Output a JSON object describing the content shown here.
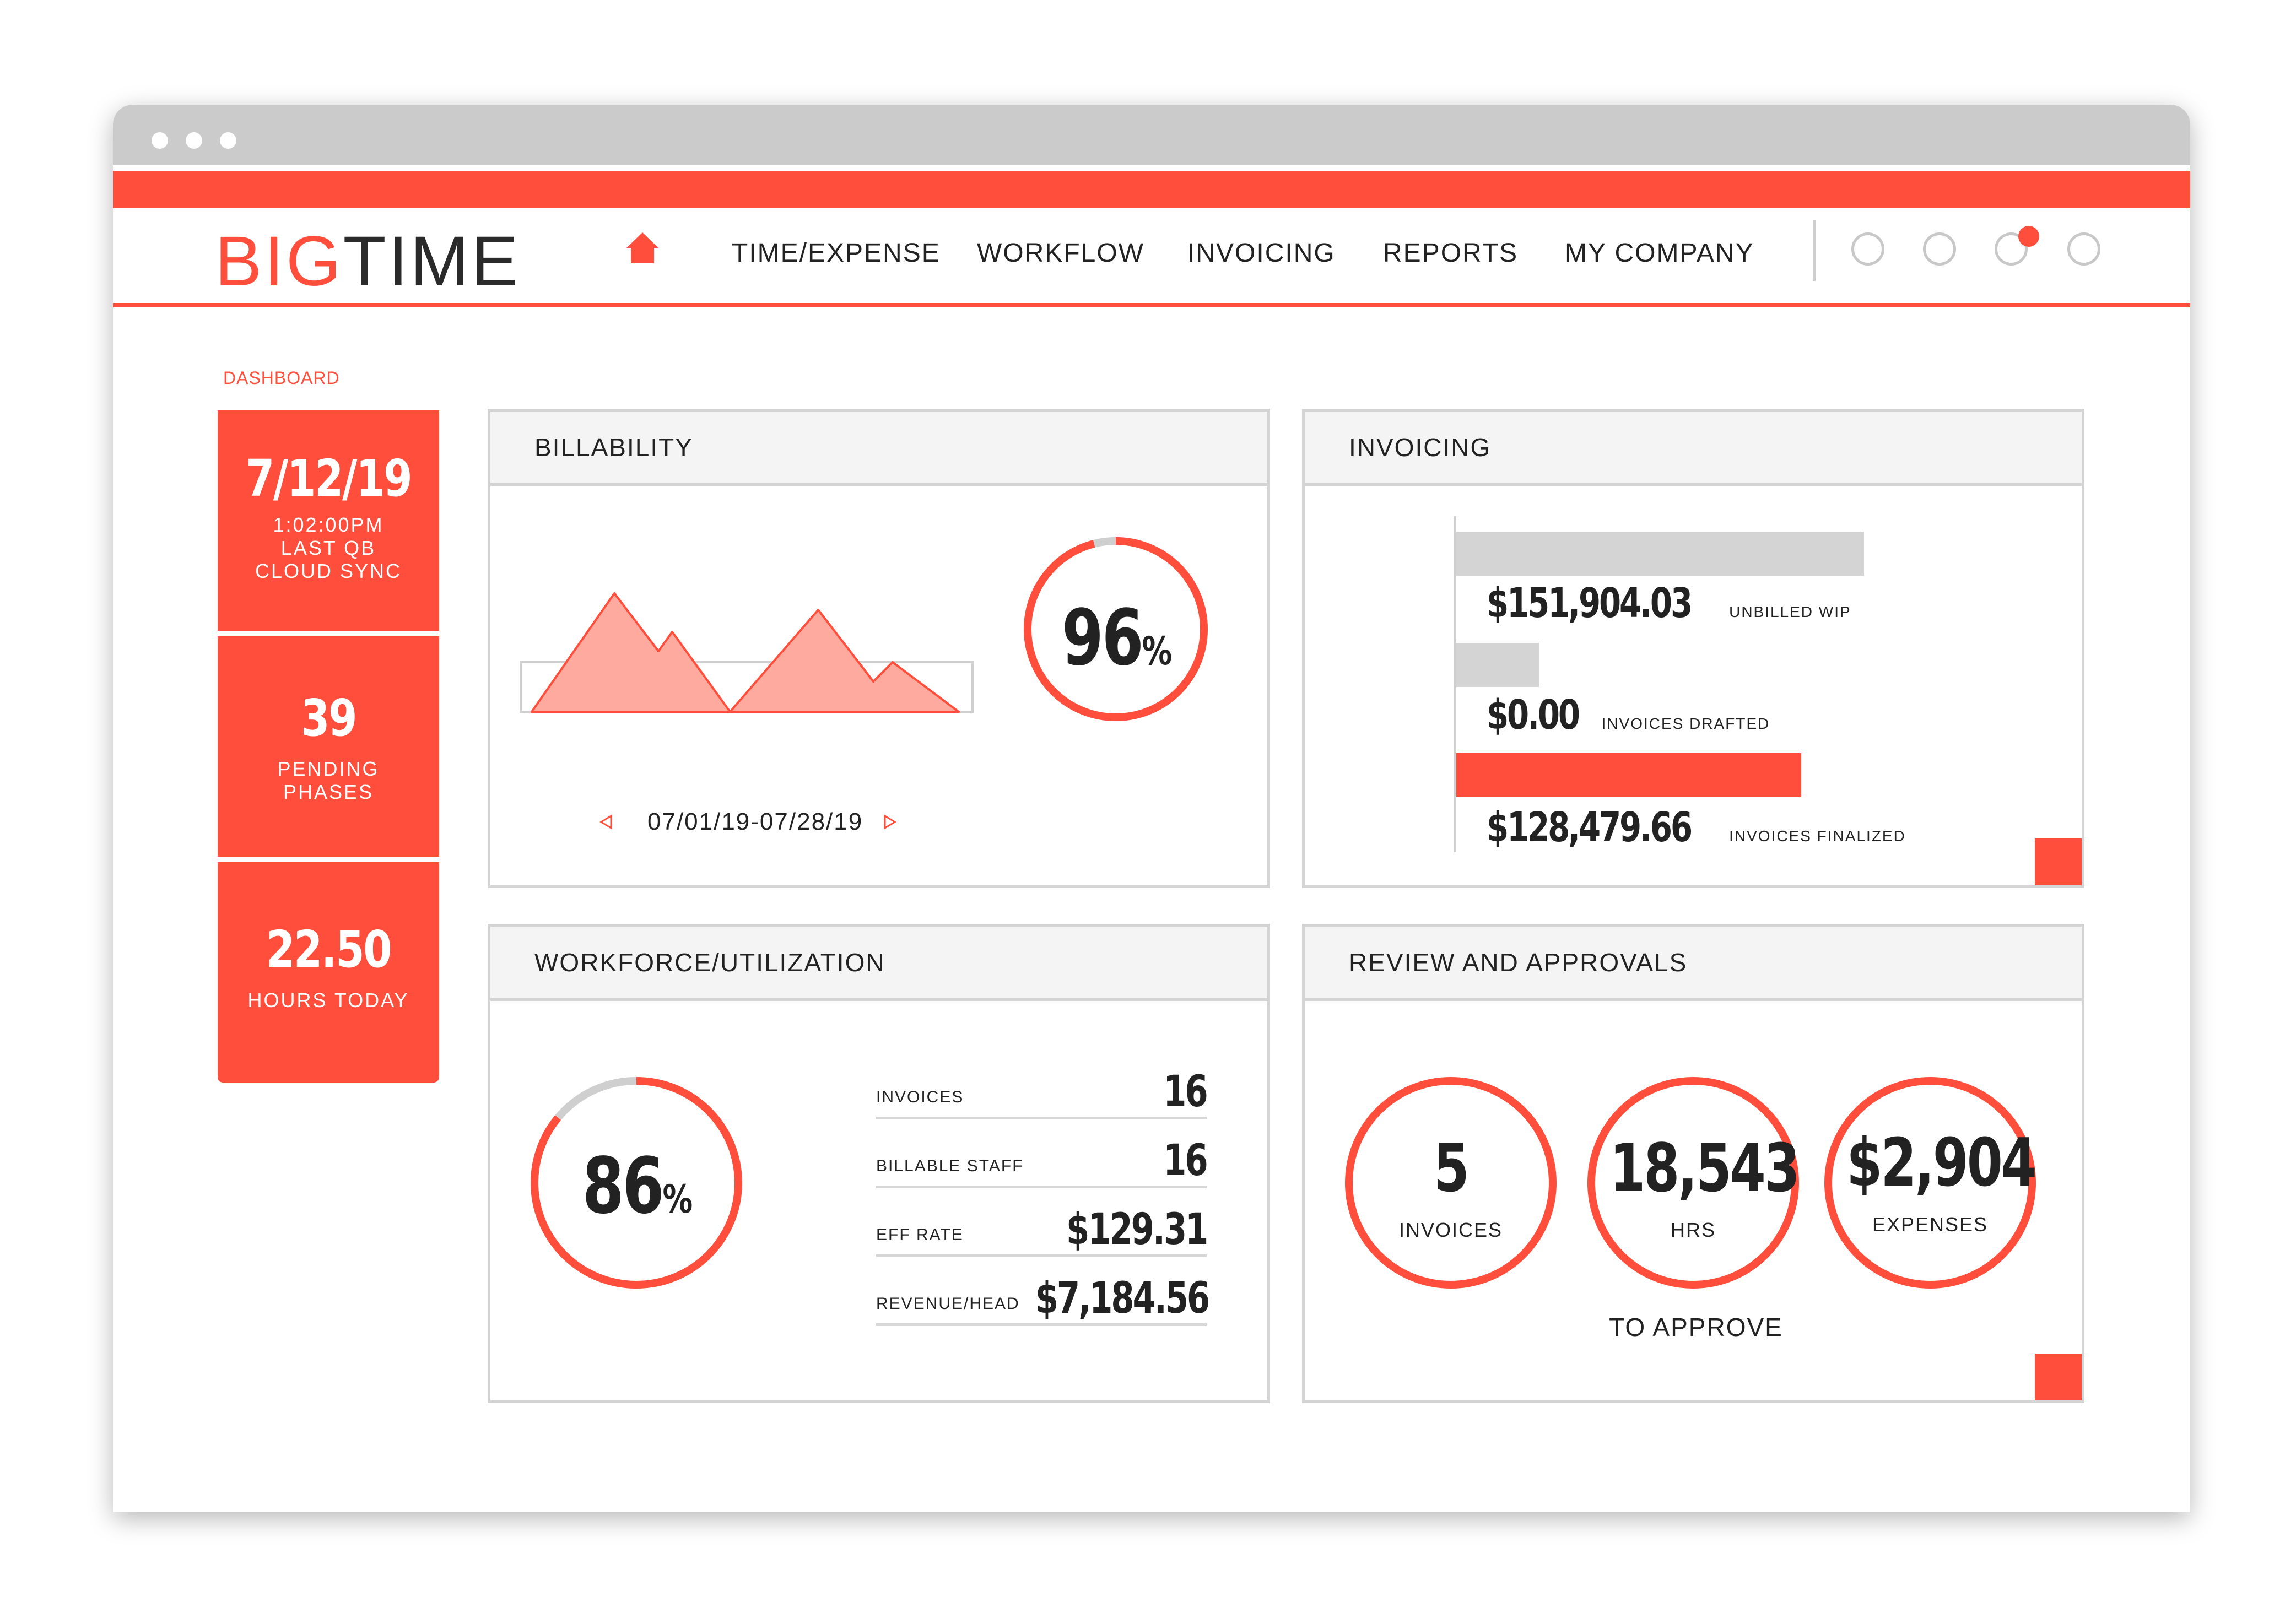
{
  "app": {
    "logo_big": "BIG",
    "logo_time": "TIME"
  },
  "nav": {
    "items": [
      "TIME/EXPENSE",
      "WORKFLOW",
      "INVOICING",
      "REPORTS",
      "MY COMPANY"
    ]
  },
  "breadcrumb": "DASHBOARD",
  "tiles": [
    {
      "value": "7/12/19",
      "lines": [
        "1:02:00PM",
        "LAST QB",
        "CLOUD SYNC"
      ]
    },
    {
      "value": "39",
      "lines": [
        "PENDING",
        "PHASES"
      ]
    },
    {
      "value": "22.50",
      "lines": [
        "HOURS TODAY"
      ]
    }
  ],
  "billability": {
    "title": "BILLABILITY",
    "percent": 96,
    "percent_number": "96",
    "percent_sign": "%",
    "date_range": "07/01/19-07/28/19"
  },
  "invoicing": {
    "title": "INVOICING",
    "bars": [
      {
        "amount": "$151,904.03",
        "label": "UNBILLED WIP",
        "value": 151904.03,
        "color": "#d4d4d4"
      },
      {
        "amount": "$0.00",
        "label": "INVOICES DRAFTED",
        "value": 0,
        "color": "#d4d4d4"
      },
      {
        "amount": "$128,479.66",
        "label": "INVOICES FINALIZED",
        "value": 128479.66,
        "color": "#ff4e3b"
      }
    ]
  },
  "workforce": {
    "title": "WORKFORCE/UTILIZATION",
    "percent": 86,
    "percent_number": "86",
    "percent_sign": "%",
    "metrics": [
      {
        "label": "INVOICES",
        "value": "16"
      },
      {
        "label": "BILLABLE STAFF",
        "value": "16"
      },
      {
        "label": "EFF RATE",
        "value": "$129.31"
      },
      {
        "label": "REVENUE/HEAD",
        "value": "$7,184.56"
      }
    ]
  },
  "approvals": {
    "title": "REVIEW AND APPROVALS",
    "items": [
      {
        "value": "5",
        "label": "INVOICES"
      },
      {
        "value": "18,543",
        "label": "HRS"
      },
      {
        "value": "$2,904",
        "label": "EXPENSES"
      }
    ],
    "caption": "TO APPROVE"
  },
  "colors": {
    "accent": "#ff4e3b",
    "grey": "#cbcbcb",
    "text": "#222222"
  }
}
